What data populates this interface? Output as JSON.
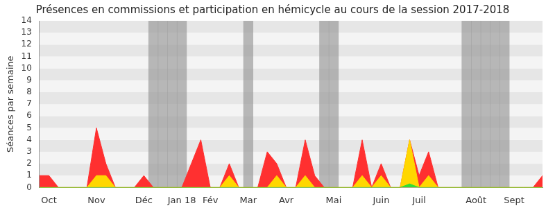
{
  "chart_data": {
    "type": "area",
    "title": "Présences en commissions et participation en hémicycle au cours de la session 2017-2018",
    "y_label": "Séances par semaine",
    "categories": [
      null,
      "Oct",
      null,
      null,
      null,
      null,
      "Nov",
      null,
      null,
      null,
      null,
      "Déc",
      null,
      null,
      null,
      "Jan 18",
      null,
      null,
      "Fév",
      null,
      null,
      null,
      "Mar",
      null,
      null,
      null,
      "Avr",
      null,
      null,
      null,
      null,
      "Mai",
      null,
      null,
      null,
      null,
      "Juin",
      null,
      null,
      null,
      "Juil",
      null,
      null,
      null,
      null,
      null,
      "Août",
      null,
      null,
      null,
      "Sept",
      null,
      null,
      null
    ],
    "series": [
      {
        "color": "#ff3030",
        "values": [
          1,
          1,
          0,
          0,
          0,
          0,
          5,
          2,
          0,
          0,
          0,
          1,
          0,
          0,
          0,
          0,
          2,
          4,
          0,
          0,
          2,
          0,
          0,
          0,
          3,
          2,
          0,
          0,
          4,
          1,
          0,
          0,
          0,
          0,
          4,
          0,
          2,
          0,
          0,
          4,
          1,
          3,
          0,
          0,
          0,
          0,
          0,
          0,
          0,
          0,
          0,
          0,
          0,
          1
        ]
      },
      {
        "color": "#ffd700",
        "values": [
          0,
          0,
          0,
          0,
          0,
          0,
          1,
          1,
          0,
          0,
          0,
          0,
          0,
          0,
          0,
          0,
          0,
          0,
          0,
          0,
          1,
          0,
          0,
          0,
          0,
          1,
          0,
          0,
          1,
          0,
          0,
          0,
          0,
          0,
          1,
          0,
          1,
          0,
          0,
          4,
          0,
          1,
          0,
          0,
          0,
          0,
          0,
          0,
          0,
          0,
          0,
          0,
          0,
          0
        ]
      },
      {
        "color": "#33dd33",
        "values": [
          0,
          0,
          0,
          0,
          0,
          0,
          0,
          0,
          0,
          0,
          0,
          0,
          0,
          0,
          0,
          0,
          0,
          0,
          0,
          0,
          0,
          0,
          0,
          0,
          0,
          0,
          0,
          0,
          0,
          0,
          0,
          0,
          0,
          0,
          0,
          0,
          0,
          0,
          0,
          0.3,
          0,
          0,
          0,
          0,
          0,
          0,
          0,
          0,
          0,
          0,
          0,
          0,
          0,
          0
        ]
      }
    ],
    "shaded_weeks": [
      false,
      false,
      false,
      false,
      false,
      false,
      false,
      false,
      false,
      false,
      false,
      false,
      true,
      true,
      true,
      true,
      false,
      false,
      false,
      false,
      false,
      false,
      true,
      false,
      false,
      false,
      false,
      false,
      false,
      false,
      true,
      true,
      false,
      false,
      false,
      false,
      false,
      false,
      false,
      false,
      false,
      false,
      false,
      false,
      false,
      true,
      true,
      true,
      true,
      true,
      false,
      false,
      false,
      false
    ],
    "ylim": [
      0,
      14
    ],
    "yticks": [
      0,
      1,
      2,
      3,
      4,
      5,
      6,
      7,
      8,
      9,
      10,
      11,
      12,
      13,
      14
    ],
    "grid": true
  }
}
